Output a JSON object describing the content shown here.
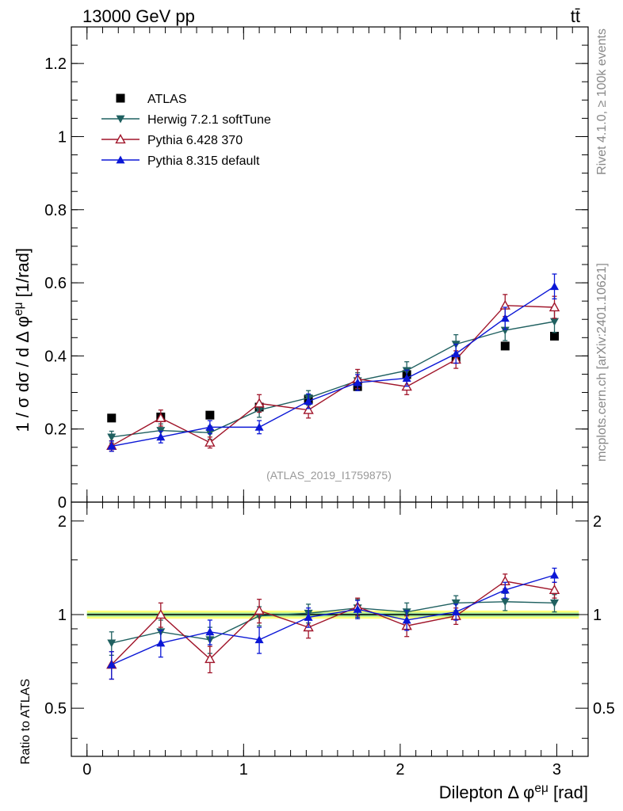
{
  "header": {
    "energy_label": "13000 GeV pp",
    "process_label": "tt̄"
  },
  "side_labels": {
    "rivet": "Rivet 4.1.0, ≥ 100k events",
    "source": "mcplots.cern.ch [arXiv:2401.10621]"
  },
  "analysis_label": "(ATLAS_2019_I1759875)",
  "colors": {
    "atlas": "#000000",
    "herwig": "#1f6060",
    "pythia6": "#a0152a",
    "pythia8": "#0b17d6",
    "band_outer": "#ffff77",
    "band_inner": "#9be69b"
  },
  "chart_data": [
    {
      "type": "scatter",
      "panel": "main",
      "ylabel": "1 / σ  dσ / d Δ φ^eμ [1/rad]",
      "xlim": [
        -0.1,
        3.2
      ],
      "ylim": [
        0,
        1.3
      ],
      "yticks": [
        0,
        0.2,
        0.4,
        0.6,
        0.8,
        1,
        1.2
      ],
      "ytick_labels": [
        "0",
        "0.2",
        "0.4",
        "0.6",
        "0.8",
        "1",
        "1.2"
      ],
      "x": [
        0.157,
        0.471,
        0.785,
        1.1,
        1.414,
        1.728,
        2.042,
        2.356,
        2.67,
        2.985
      ],
      "legend_position": "upper-left",
      "series": [
        {
          "name": "ATLAS",
          "marker": "square-filled",
          "color_key": "atlas",
          "values": [
            0.23,
            0.233,
            0.238,
            0.26,
            0.281,
            0.316,
            0.349,
            0.392,
            0.427,
            0.454
          ],
          "errors": [
            0,
            0,
            0,
            0,
            0,
            0,
            0,
            0,
            0,
            0
          ]
        },
        {
          "name": "Herwig 7.2.1 softTune",
          "marker": "triangle-down-filled",
          "color_key": "herwig",
          "values": [
            0.178,
            0.196,
            0.19,
            0.252,
            0.285,
            0.332,
            0.36,
            0.432,
            0.47,
            0.494
          ],
          "errors": [
            0.016,
            0.018,
            0.018,
            0.02,
            0.02,
            0.022,
            0.024,
            0.026,
            0.028,
            0.03
          ]
        },
        {
          "name": "Pythia 6.428 370",
          "marker": "triangle-up-open",
          "color_key": "pythia6",
          "values": [
            0.154,
            0.23,
            0.163,
            0.27,
            0.252,
            0.337,
            0.316,
            0.39,
            0.538,
            0.533
          ],
          "errors": [
            0.014,
            0.022,
            0.015,
            0.024,
            0.022,
            0.026,
            0.022,
            0.024,
            0.03,
            0.03
          ]
        },
        {
          "name": "Pythia 8.315 default",
          "marker": "triangle-up-filled",
          "color_key": "pythia8",
          "values": [
            0.153,
            0.178,
            0.205,
            0.205,
            0.276,
            0.327,
            0.339,
            0.406,
            0.503,
            0.59
          ],
          "errors": [
            0.014,
            0.016,
            0.018,
            0.018,
            0.02,
            0.022,
            0.022,
            0.026,
            0.03,
            0.034
          ]
        }
      ]
    },
    {
      "type": "scatter",
      "panel": "ratio",
      "ylabel": "Ratio to ATLAS",
      "xlabel": "Dilepton Δ φ^eμ [rad]",
      "xlim": [
        -0.1,
        3.2
      ],
      "ylim": [
        0.35,
        2.3
      ],
      "xticks": [
        0,
        1,
        2,
        3
      ],
      "xtick_labels": [
        "0",
        "1",
        "2",
        "3"
      ],
      "yticks": [
        0.5,
        1,
        2
      ],
      "ytick_labels": [
        "0.5",
        "1",
        "2"
      ],
      "x": [
        0.157,
        0.471,
        0.785,
        1.1,
        1.414,
        1.728,
        2.042,
        2.356,
        2.67,
        2.985
      ],
      "reference_band": {
        "outer": [
          0.97,
          1.03
        ],
        "inner": [
          0.985,
          1.015
        ]
      },
      "series": [
        {
          "name": "Herwig 7.2.1 softTune",
          "marker": "triangle-down-filled",
          "color_key": "herwig",
          "values": [
            0.81,
            0.88,
            0.83,
            0.99,
            1.01,
            1.05,
            1.02,
            1.09,
            1.1,
            1.09
          ],
          "errors": [
            0.07,
            0.08,
            0.08,
            0.07,
            0.07,
            0.07,
            0.07,
            0.06,
            0.07,
            0.07
          ]
        },
        {
          "name": "Pythia 6.428 370",
          "marker": "triangle-up-open",
          "color_key": "pythia6",
          "values": [
            0.69,
            1.0,
            0.72,
            1.03,
            0.91,
            1.06,
            0.92,
            0.99,
            1.28,
            1.2
          ],
          "errors": [
            0.07,
            0.09,
            0.07,
            0.09,
            0.07,
            0.07,
            0.07,
            0.06,
            0.07,
            0.07
          ]
        },
        {
          "name": "Pythia 8.315 default",
          "marker": "triangle-up-filled",
          "color_key": "pythia8",
          "values": [
            0.69,
            0.81,
            0.88,
            0.83,
            0.98,
            1.04,
            0.96,
            1.02,
            1.2,
            1.34
          ],
          "errors": [
            0.07,
            0.08,
            0.08,
            0.08,
            0.07,
            0.07,
            0.07,
            0.06,
            0.07,
            0.07
          ]
        }
      ]
    }
  ]
}
